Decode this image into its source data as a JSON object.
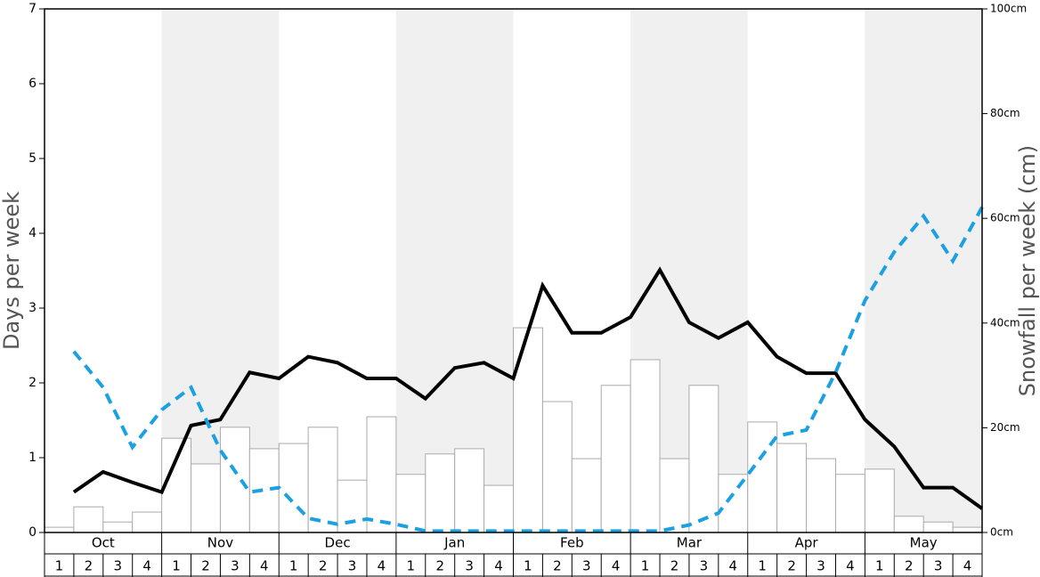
{
  "chart_data": {
    "type": "bar_line",
    "ylabel": "Days per week",
    "y2label": "Snowfall per week (cm)",
    "months": [
      "Oct",
      "Nov",
      "Dec",
      "Jan",
      "Feb",
      "Mar",
      "Apr",
      "May"
    ],
    "categories": [
      "1",
      "2",
      "3",
      "4",
      "1",
      "2",
      "3",
      "4",
      "1",
      "2",
      "3",
      "4",
      "1",
      "2",
      "3",
      "4",
      "1",
      "2",
      "3",
      "4",
      "1",
      "2",
      "3",
      "4",
      "1",
      "2",
      "3",
      "4",
      "1",
      "2",
      "3",
      "4"
    ],
    "ylim": [
      0,
      7
    ],
    "yticks": [
      0,
      1,
      2,
      3,
      4,
      5,
      6,
      7
    ],
    "y2lim": [
      0,
      100
    ],
    "y2ticks": [
      {
        "value": 0,
        "label": "0cm"
      },
      {
        "value": 20,
        "label": "20cm"
      },
      {
        "value": 40,
        "label": "40cm"
      },
      {
        "value": 60,
        "label": "60cm"
      },
      {
        "value": 80,
        "label": "80cm"
      },
      {
        "value": 100,
        "label": "100cm"
      }
    ],
    "series": [
      {
        "type": "bar",
        "axis": "y2",
        "color": "#ffffff",
        "values": [
          1.0,
          4.9,
          2.0,
          3.9,
          18.0,
          13.1,
          20.1,
          16.0,
          17.0,
          20.1,
          10.0,
          22.1,
          11.1,
          15.0,
          16.0,
          9.0,
          39.1,
          25.0,
          14.1,
          28.1,
          33.0,
          14.1,
          28.1,
          11.1,
          21.1,
          17.0,
          14.1,
          11.1,
          12.1,
          3.1,
          2.0,
          1.0
        ]
      },
      {
        "type": "line",
        "color": "#000000",
        "values": [
          0.54,
          0.81,
          0.67,
          0.54,
          1.43,
          1.51,
          2.14,
          2.06,
          2.35,
          2.27,
          2.06,
          2.06,
          1.79,
          2.2,
          2.27,
          2.06,
          3.3,
          2.67,
          2.67,
          2.88,
          3.51,
          2.81,
          2.6,
          2.81,
          2.35,
          2.13,
          2.13,
          1.51,
          1.15,
          0.6,
          0.6,
          0.32
        ]
      },
      {
        "type": "dashed",
        "color": "#1ba1e2",
        "values": [
          2.42,
          1.94,
          1.14,
          1.64,
          1.94,
          1.1,
          0.54,
          0.6,
          0.19,
          0.11,
          0.18,
          0.11,
          0.02,
          0.02,
          0.02,
          0.02,
          0.02,
          0.02,
          0.02,
          0.02,
          0.02,
          0.1,
          0.26,
          0.77,
          1.29,
          1.37,
          2.14,
          3.1,
          3.75,
          4.23,
          3.63,
          4.35
        ]
      }
    ]
  }
}
